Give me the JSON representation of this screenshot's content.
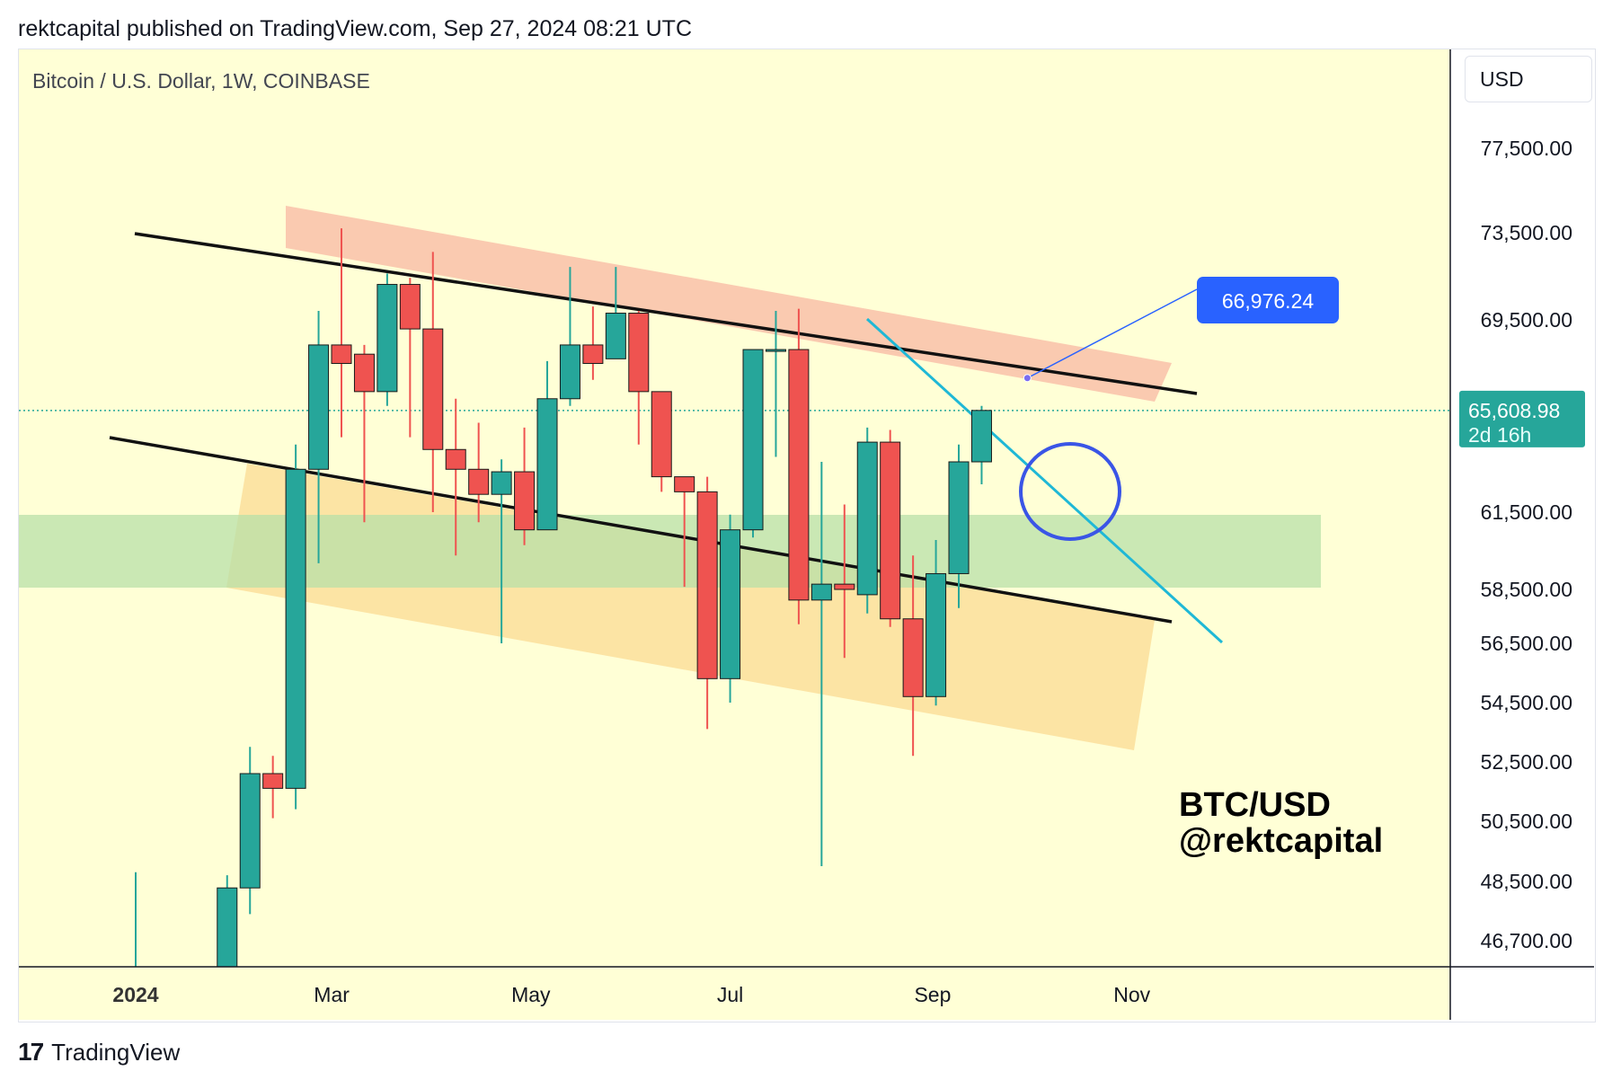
{
  "header": {
    "publisher_line": "rektcapital published on TradingView.com, Sep 27, 2024 08:21 UTC"
  },
  "footer": {
    "brand": "TradingView"
  },
  "chart_data": {
    "type": "candlestick",
    "title": "Bitcoin / U.S. Dollar, 1W, COINBASE",
    "currency_label": "USD",
    "watermark_lines": [
      "BTC/USD",
      "@rektcapital"
    ],
    "y_ticks": [
      46700,
      48500,
      50500,
      52500,
      54500,
      56500,
      58500,
      61500,
      69500,
      73500,
      77500
    ],
    "y_tick_labels": [
      "46,700.00",
      "48,500.00",
      "50,500.00",
      "52,500.00",
      "54,500.00",
      "56,500.00",
      "58,500.00",
      "61,500.00",
      "69,500.00",
      "73,500.00",
      "77,500.00"
    ],
    "x_ticks": [
      {
        "label": "2024",
        "date": "2024-01-01",
        "bold": true
      },
      {
        "label": "Mar",
        "date": "2024-03-01"
      },
      {
        "label": "May",
        "date": "2024-05-01"
      },
      {
        "label": "Jul",
        "date": "2024-07-01"
      },
      {
        "label": "Sep",
        "date": "2024-09-01"
      },
      {
        "label": "Nov",
        "date": "2024-11-01"
      }
    ],
    "last_price": {
      "label": "65,608.98",
      "sublabel": "2d 16h",
      "value": 65609,
      "color": "#26a69a"
    },
    "callout": {
      "label": "66,976.24",
      "value": 66976,
      "date": "2024-09-30",
      "color": "#2962ff"
    },
    "colors": {
      "up": "#26a69a",
      "down": "#ef5350",
      "background": "#ffffd6"
    },
    "candles": [
      {
        "date": "2024-01-01",
        "open": 42200,
        "high": 48800,
        "low": 41500,
        "close": 44100
      },
      {
        "date": "2024-01-29",
        "open": 42600,
        "high": 48700,
        "low": 42300,
        "close": 48300
      },
      {
        "date": "2024-02-05",
        "open": 48300,
        "high": 53000,
        "low": 47500,
        "close": 52100
      },
      {
        "date": "2024-02-12",
        "open": 52100,
        "high": 52700,
        "low": 50600,
        "close": 51600
      },
      {
        "date": "2024-02-19",
        "open": 51600,
        "high": 64200,
        "low": 50900,
        "close": 63200
      },
      {
        "date": "2024-02-26",
        "open": 63200,
        "high": 69900,
        "low": 59500,
        "close": 68400
      },
      {
        "date": "2024-03-04",
        "open": 68400,
        "high": 73700,
        "low": 64500,
        "close": 67600
      },
      {
        "date": "2024-03-11",
        "open": 68000,
        "high": 68400,
        "low": 61100,
        "close": 66400
      },
      {
        "date": "2024-03-18",
        "open": 66400,
        "high": 71600,
        "low": 65800,
        "close": 71100
      },
      {
        "date": "2024-03-25",
        "open": 71100,
        "high": 71400,
        "low": 64500,
        "close": 69100
      },
      {
        "date": "2024-04-01",
        "open": 69100,
        "high": 72600,
        "low": 61500,
        "close": 64000
      },
      {
        "date": "2024-04-08",
        "open": 64000,
        "high": 66100,
        "low": 59800,
        "close": 63200
      },
      {
        "date": "2024-04-15",
        "open": 63200,
        "high": 65100,
        "low": 61100,
        "close": 62200
      },
      {
        "date": "2024-04-22",
        "open": 62200,
        "high": 63600,
        "low": 56500,
        "close": 63100
      },
      {
        "date": "2024-04-29",
        "open": 63100,
        "high": 64900,
        "low": 60200,
        "close": 60800
      },
      {
        "date": "2024-05-06",
        "open": 60800,
        "high": 67700,
        "low": 60900,
        "close": 66100
      },
      {
        "date": "2024-05-13",
        "open": 66100,
        "high": 71900,
        "low": 65800,
        "close": 68400
      },
      {
        "date": "2024-05-20",
        "open": 68400,
        "high": 70100,
        "low": 66900,
        "close": 67600
      },
      {
        "date": "2024-05-27",
        "open": 67800,
        "high": 71900,
        "low": 67800,
        "close": 69800
      },
      {
        "date": "2024-06-03",
        "open": 69800,
        "high": 69900,
        "low": 64200,
        "close": 66400
      },
      {
        "date": "2024-06-10",
        "open": 66400,
        "high": 66400,
        "low": 62300,
        "close": 62900
      },
      {
        "date": "2024-06-17",
        "open": 62900,
        "high": 62700,
        "low": 58600,
        "close": 62300
      },
      {
        "date": "2024-06-24",
        "open": 62300,
        "high": 62900,
        "low": 53600,
        "close": 55300
      },
      {
        "date": "2024-07-01",
        "open": 55300,
        "high": 61400,
        "low": 54500,
        "close": 60800
      },
      {
        "date": "2024-07-08",
        "open": 60800,
        "high": 68200,
        "low": 60500,
        "close": 68200
      },
      {
        "date": "2024-07-15",
        "open": 68200,
        "high": 69900,
        "low": 63700,
        "close": 68200
      },
      {
        "date": "2024-07-22",
        "open": 68200,
        "high": 70000,
        "low": 57200,
        "close": 58100
      },
      {
        "date": "2024-07-29",
        "open": 58100,
        "high": 63500,
        "low": 49000,
        "close": 58700
      },
      {
        "date": "2024-08-05",
        "open": 58700,
        "high": 61800,
        "low": 56000,
        "close": 58500
      },
      {
        "date": "2024-08-12",
        "open": 58300,
        "high": 64900,
        "low": 57600,
        "close": 64300
      },
      {
        "date": "2024-08-19",
        "open": 64300,
        "high": 64800,
        "low": 57100,
        "close": 57400
      },
      {
        "date": "2024-08-26",
        "open": 57400,
        "high": 59800,
        "low": 52700,
        "close": 54700
      },
      {
        "date": "2024-09-02",
        "open": 54700,
        "high": 60400,
        "low": 54400,
        "close": 59100
      },
      {
        "date": "2024-09-09",
        "open": 59100,
        "high": 64200,
        "low": 57800,
        "close": 63500
      },
      {
        "date": "2024-09-16",
        "open": 63500,
        "high": 65800,
        "low": 62600,
        "close": 65609
      }
    ]
  }
}
